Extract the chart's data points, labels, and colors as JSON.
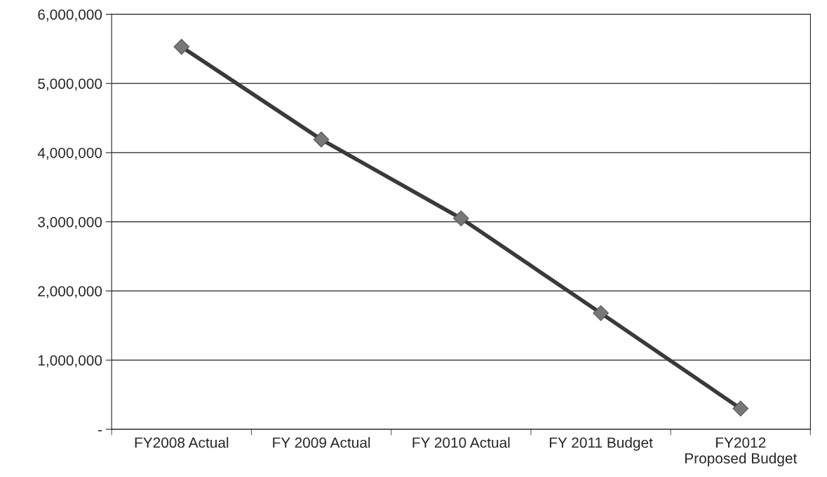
{
  "chart_data": {
    "type": "line",
    "categories": [
      "FY2008 Actual",
      "FY 2009 Actual",
      "FY 2010 Actual",
      "FY 2011 Budget",
      "FY2012\nProposed Budget"
    ],
    "series": [
      {
        "color": "#3a3a3a",
        "values": [
          5530000,
          4190000,
          3050000,
          1680000,
          300000
        ]
      }
    ],
    "ylim": [
      0,
      6000000
    ],
    "yticks": [
      {
        "value": 0,
        "label": "-"
      },
      {
        "value": 1000000,
        "label": "1,000,000"
      },
      {
        "value": 2000000,
        "label": "2,000,000"
      },
      {
        "value": 3000000,
        "label": "3,000,000"
      },
      {
        "value": 4000000,
        "label": "4,000,000"
      },
      {
        "value": 5000000,
        "label": "5,000,000"
      },
      {
        "value": 6000000,
        "label": "6,000,000"
      }
    ],
    "grid": "y",
    "marker": "diamond",
    "line_style": "solid"
  }
}
